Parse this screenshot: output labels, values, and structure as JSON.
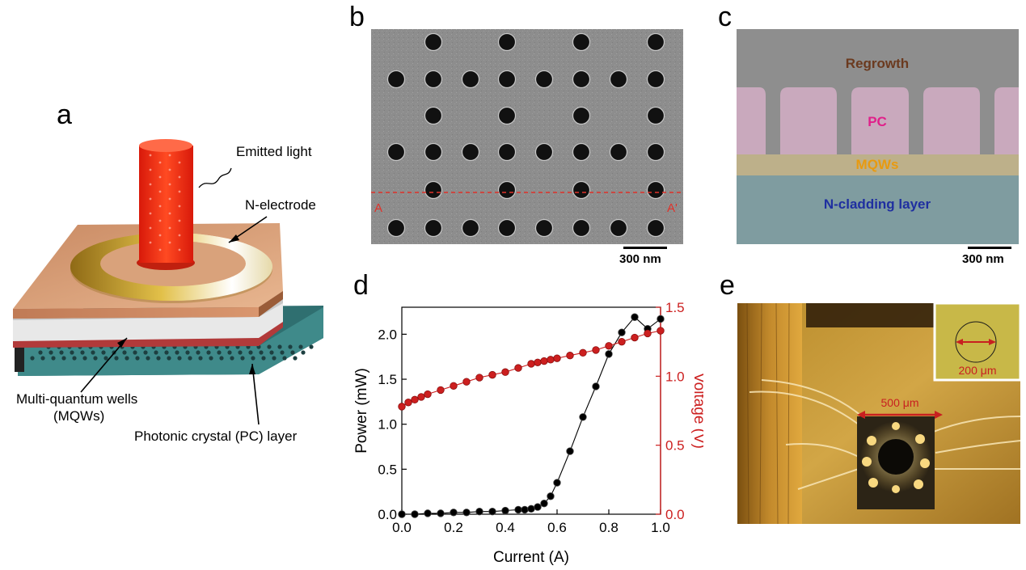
{
  "panels": {
    "a": {
      "label": "a",
      "annotations": {
        "emitted_light": "Emitted light",
        "n_electrode": "N-electrode",
        "mqw_line1": "Multi-quantum wells",
        "mqw_line2": "(MQWs)",
        "pc_layer": "Photonic crystal (PC) layer"
      },
      "colors": {
        "beam": "#ff2a10",
        "top_layer": "#d99a70",
        "ring": "#d8b640",
        "pc_layer": "#3f8a8a",
        "mqw_layer": "#a33a3a"
      }
    },
    "b": {
      "label": "b",
      "marker_left": "A",
      "marker_right": "A'",
      "scale_text": "300 nm",
      "colors": {
        "background": "#8b8b8b",
        "hole": "#111111",
        "cut_line": "#e0322a"
      }
    },
    "c": {
      "label": "c",
      "scale_text": "300 nm",
      "layers": {
        "regrowth": "Regrowth",
        "pc": "PC",
        "mqws": "MQWs",
        "n_cladding": "N-cladding layer"
      },
      "colors": {
        "regrowth": "#6b3a1f",
        "pc": "#e0208a",
        "mqws": "#e89a10",
        "n_cladding": "#1f2fa0"
      }
    },
    "d": {
      "label": "d",
      "colors": {
        "power": "#000000",
        "voltage": "#cc1f1f"
      }
    },
    "e": {
      "label": "e",
      "device_size": "500 μm",
      "inset_size": "200 μm",
      "colors": {
        "arrow": "#c82020"
      }
    }
  },
  "chart_data": {
    "type": "scatter",
    "xlabel": "Current (A)",
    "ylabel_left": "Power (mW)",
    "ylabel_right": "Voltage (V)",
    "xlim": [
      0.0,
      1.0
    ],
    "ylim_left": [
      0.0,
      2.3
    ],
    "ylim_right": [
      0.0,
      1.5
    ],
    "xticks": [
      "0.0",
      "0.2",
      "0.4",
      "0.6",
      "0.8",
      "1.0"
    ],
    "yticks_left": [
      "0.0",
      "0.5",
      "1.0",
      "1.5",
      "2.0"
    ],
    "yticks_right": [
      "0.0",
      "0.5",
      "1.0",
      "1.5"
    ],
    "series": [
      {
        "name": "Power",
        "axis": "left",
        "x": [
          0.0,
          0.05,
          0.1,
          0.15,
          0.2,
          0.25,
          0.3,
          0.35,
          0.4,
          0.45,
          0.475,
          0.5,
          0.525,
          0.55,
          0.575,
          0.6,
          0.65,
          0.7,
          0.75,
          0.8,
          0.85,
          0.9,
          0.95,
          1.0
        ],
        "values": [
          0.0,
          0.0,
          0.01,
          0.01,
          0.02,
          0.02,
          0.03,
          0.03,
          0.04,
          0.05,
          0.05,
          0.06,
          0.08,
          0.12,
          0.2,
          0.35,
          0.7,
          1.08,
          1.42,
          1.78,
          2.02,
          2.19,
          2.06,
          2.17
        ]
      },
      {
        "name": "Voltage",
        "axis": "right",
        "x": [
          0.0,
          0.025,
          0.05,
          0.075,
          0.1,
          0.15,
          0.2,
          0.25,
          0.3,
          0.35,
          0.4,
          0.45,
          0.5,
          0.525,
          0.55,
          0.575,
          0.6,
          0.65,
          0.7,
          0.75,
          0.8,
          0.85,
          0.9,
          0.95,
          1.0
        ],
        "values": [
          0.78,
          0.81,
          0.83,
          0.85,
          0.87,
          0.9,
          0.93,
          0.96,
          0.99,
          1.01,
          1.03,
          1.06,
          1.09,
          1.1,
          1.11,
          1.12,
          1.13,
          1.15,
          1.17,
          1.19,
          1.22,
          1.25,
          1.28,
          1.31,
          1.33
        ]
      }
    ]
  }
}
